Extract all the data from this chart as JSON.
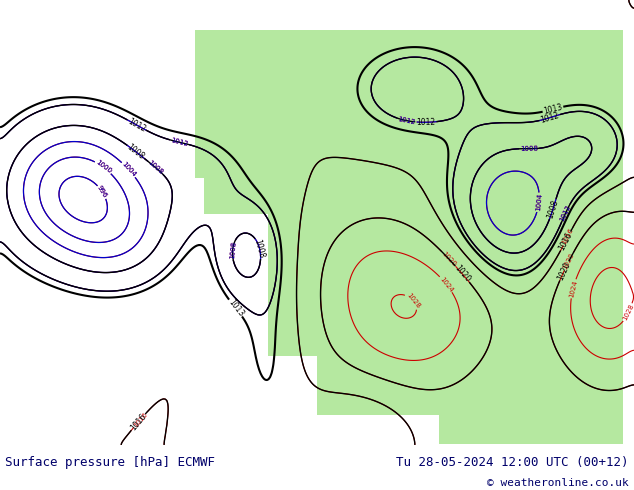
{
  "title_left": "Surface pressure [hPa] ECMWF",
  "title_right": "Tu 28-05-2024 12:00 UTC (00+12)",
  "copyright": "© weatheronline.co.uk",
  "bg_color": "#ffffff",
  "ocean_color": "#f0f0f0",
  "land_color": "#b5e8a0",
  "border_color": "#888888",
  "bottom_bar_color": "#c8c8c8",
  "bottom_text_color": "#00006a",
  "fig_width": 6.34,
  "fig_height": 4.9,
  "dpi": 100,
  "contour_black_color": "#000000",
  "contour_red_color": "#cc0000",
  "contour_blue_color": "#0000cc"
}
